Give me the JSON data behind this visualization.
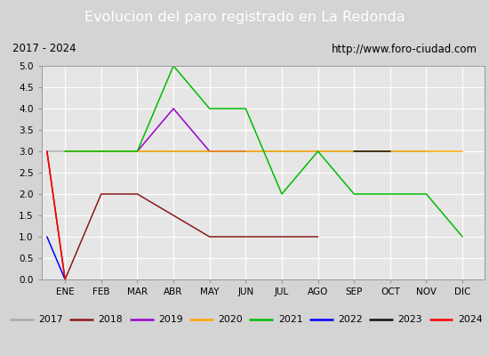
{
  "title": "Evolucion del paro registrado en La Redonda",
  "subtitle_left": "2017 - 2024",
  "subtitle_right": "http://www.foro-ciudad.com",
  "months": [
    "ENE",
    "FEB",
    "MAR",
    "ABR",
    "MAY",
    "JUN",
    "JUL",
    "AGO",
    "SEP",
    "OCT",
    "NOV",
    "DIC"
  ],
  "ylim": [
    0.0,
    5.0
  ],
  "yticks": [
    0.0,
    0.5,
    1.0,
    1.5,
    2.0,
    2.5,
    3.0,
    3.5,
    4.0,
    4.5,
    5.0
  ],
  "series_plot": {
    "2017": {
      "color": "#aaaaaa",
      "x": [
        -0.5,
        0,
        8,
        9,
        10
      ],
      "y": [
        3.0,
        3.0,
        3.0,
        3.0,
        3.0
      ]
    },
    "2018": {
      "color": "#8b1a1a",
      "x": [
        -0.5,
        0,
        1,
        2,
        4,
        5,
        6,
        7
      ],
      "y": [
        3.0,
        0.0,
        2.0,
        2.0,
        1.0,
        1.0,
        1.0,
        1.0
      ]
    },
    "2019": {
      "color": "#9900cc",
      "x": [
        2,
        3,
        4,
        5
      ],
      "y": [
        3.0,
        4.0,
        3.0,
        3.0
      ]
    },
    "2020": {
      "color": "#ffa500",
      "x": [
        0,
        1,
        2,
        3,
        4,
        5,
        6,
        7,
        8,
        9,
        10,
        11
      ],
      "y": [
        3.0,
        3.0,
        3.0,
        3.0,
        3.0,
        3.0,
        3.0,
        3.0,
        3.0,
        3.0,
        3.0,
        3.0
      ]
    },
    "2021": {
      "color": "#00bb00",
      "x": [
        0,
        1,
        2,
        3,
        4,
        5,
        6,
        7,
        8,
        9,
        10,
        11
      ],
      "y": [
        3.0,
        3.0,
        3.0,
        5.0,
        4.0,
        4.0,
        2.0,
        3.0,
        2.0,
        2.0,
        2.0,
        1.0
      ]
    },
    "2022": {
      "color": "#0000ff",
      "x": [
        -0.5,
        0
      ],
      "y": [
        1.0,
        0.0
      ]
    },
    "2023": {
      "color": "#111111",
      "x": [
        8,
        9
      ],
      "y": [
        3.0,
        3.0
      ]
    },
    "2024": {
      "color": "#ff0000",
      "x": [
        -0.5,
        0
      ],
      "y": [
        3.0,
        0.0
      ]
    }
  },
  "background_color": "#d4d4d4",
  "plot_bg_color": "#e6e6e6",
  "title_bg_color": "#4472c4",
  "title_color": "#ffffff",
  "subtitle_bg_color": "#c8c8c8",
  "grid_color": "#ffffff",
  "legend_years": [
    "2017",
    "2018",
    "2019",
    "2020",
    "2021",
    "2022",
    "2023",
    "2024"
  ],
  "legend_colors": [
    "#aaaaaa",
    "#8b1a1a",
    "#9900cc",
    "#ffa500",
    "#00bb00",
    "#0000ff",
    "#111111",
    "#ff0000"
  ]
}
